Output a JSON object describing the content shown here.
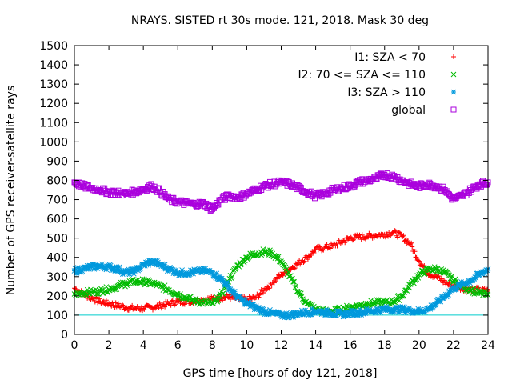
{
  "chart_data": {
    "type": "scatter",
    "title": "NRAYS. SISTED rt 30s mode. 121, 2018. Mask 30 deg",
    "xlabel": "GPS time [hours of doy 121, 2018]",
    "ylabel": "Number of GPS receiver-satellite rays",
    "xlim": [
      0,
      24
    ],
    "ylim": [
      0,
      1500
    ],
    "xticks": [
      "0",
      "2",
      "4",
      "6",
      "8",
      "10",
      "12",
      "14",
      "16",
      "18",
      "20",
      "22",
      "24"
    ],
    "yticks": [
      "0",
      "100",
      "200",
      "300",
      "400",
      "500",
      "600",
      "700",
      "800",
      "900",
      "1000",
      "1100",
      "1200",
      "1300",
      "1400",
      "1500"
    ],
    "grid": false,
    "legend_position": "top-right",
    "reference_line": {
      "y": 100,
      "color": "#00cccc"
    },
    "series": [
      {
        "name": "I1: SZA < 70",
        "color": "#ff0000",
        "marker": "plus",
        "x": [
          0,
          0.5,
          1,
          1.5,
          2,
          2.5,
          3,
          3.5,
          4,
          4.5,
          5,
          5.5,
          6,
          6.5,
          7,
          7.5,
          8,
          8.5,
          9,
          9.5,
          10,
          10.5,
          11,
          11.5,
          12,
          12.5,
          13,
          13.5,
          14,
          14.5,
          15,
          15.5,
          16,
          16.5,
          17,
          17.5,
          18,
          18.5,
          19,
          19.5,
          20,
          20.5,
          21,
          21.5,
          22,
          22.5,
          23,
          23.5,
          24
        ],
        "y": [
          240,
          210,
          190,
          170,
          160,
          150,
          140,
          135,
          135,
          140,
          150,
          160,
          170,
          170,
          175,
          180,
          185,
          190,
          195,
          185,
          180,
          190,
          230,
          270,
          310,
          340,
          370,
          400,
          440,
          450,
          460,
          480,
          500,
          505,
          510,
          515,
          520,
          530,
          510,
          470,
          380,
          320,
          300,
          270,
          250,
          240,
          235,
          230,
          225
        ]
      },
      {
        "name": "I2: 70 <= SZA <= 110",
        "color": "#00bb00",
        "marker": "cross",
        "x": [
          0,
          0.5,
          1,
          1.5,
          2,
          2.5,
          3,
          3.5,
          4,
          4.5,
          5,
          5.5,
          6,
          6.5,
          7,
          7.5,
          8,
          8.5,
          9,
          9.5,
          10,
          10.5,
          11,
          11.5,
          12,
          12.5,
          13,
          13.5,
          14,
          14.5,
          15,
          15.5,
          16,
          16.5,
          17,
          17.5,
          18,
          18.5,
          19,
          19.5,
          20,
          20.5,
          21,
          21.5,
          22,
          22.5,
          23,
          23.5,
          24
        ],
        "y": [
          210,
          215,
          220,
          225,
          235,
          250,
          265,
          275,
          275,
          265,
          250,
          230,
          210,
          190,
          175,
          165,
          160,
          200,
          290,
          360,
          400,
          420,
          430,
          420,
          380,
          300,
          220,
          160,
          130,
          120,
          120,
          130,
          140,
          150,
          160,
          165,
          165,
          170,
          200,
          260,
          310,
          335,
          340,
          320,
          280,
          250,
          230,
          215,
          205
        ]
      },
      {
        "name": "I3: SZA > 110",
        "color": "#0099dd",
        "marker": "star",
        "x": [
          0,
          0.5,
          1,
          1.5,
          2,
          2.5,
          3,
          3.5,
          4,
          4.5,
          5,
          5.5,
          6,
          6.5,
          7,
          7.5,
          8,
          8.5,
          9,
          9.5,
          10,
          10.5,
          11,
          11.5,
          12,
          12.5,
          13,
          13.5,
          14,
          14.5,
          15,
          15.5,
          16,
          16.5,
          17,
          17.5,
          18,
          18.5,
          19,
          19.5,
          20,
          20.5,
          21,
          21.5,
          22,
          22.5,
          23,
          23.5,
          24
        ],
        "y": [
          330,
          340,
          350,
          355,
          350,
          340,
          320,
          330,
          360,
          380,
          360,
          340,
          320,
          320,
          325,
          330,
          320,
          290,
          240,
          190,
          160,
          140,
          120,
          110,
          100,
          100,
          110,
          115,
          120,
          115,
          110,
          105,
          110,
          115,
          120,
          125,
          130,
          130,
          130,
          125,
          120,
          130,
          160,
          200,
          240,
          260,
          280,
          310,
          340
        ]
      },
      {
        "name": "global",
        "color": "#aa00dd",
        "marker": "square",
        "x": [
          0,
          0.5,
          1,
          1.5,
          2,
          2.5,
          3,
          3.5,
          4,
          4.5,
          5,
          5.5,
          6,
          6.5,
          7,
          7.5,
          8,
          8.5,
          9,
          9.5,
          10,
          10.5,
          11,
          11.5,
          12,
          12.5,
          13,
          13.5,
          14,
          14.5,
          15,
          15.5,
          16,
          16.5,
          17,
          17.5,
          18,
          18.5,
          19,
          19.5,
          20,
          20.5,
          21,
          21.5,
          22,
          22.5,
          23,
          23.5,
          24
        ],
        "y": [
          790,
          770,
          760,
          750,
          740,
          735,
          730,
          740,
          755,
          770,
          740,
          700,
          690,
          680,
          675,
          680,
          650,
          700,
          720,
          710,
          730,
          750,
          770,
          780,
          790,
          780,
          760,
          740,
          720,
          730,
          750,
          760,
          770,
          790,
          800,
          810,
          830,
          820,
          800,
          780,
          770,
          780,
          770,
          750,
          700,
          720,
          750,
          780,
          790
        ]
      }
    ]
  }
}
